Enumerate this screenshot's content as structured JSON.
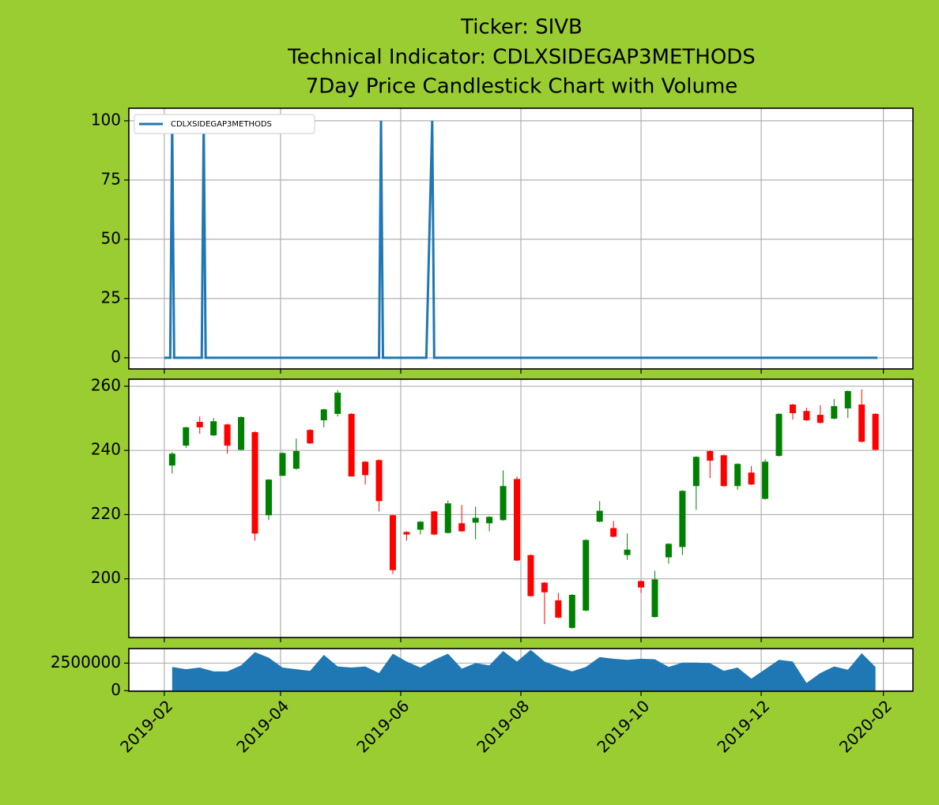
{
  "chart_data": [
    {
      "type": "line",
      "title": [
        "Ticker: SIVB",
        "Technical Indicator: CDLXSIDEGAP3METHODS",
        "7Day Price Candlestick Chart with Volume"
      ],
      "x": [
        "2019-02-01",
        "2019-02-04",
        "2019-02-05",
        "2019-02-06",
        "2019-02-20",
        "2019-02-21",
        "2019-02-22",
        "2019-05-21",
        "2019-05-22",
        "2019-05-23",
        "2019-06-14",
        "2019-06-17",
        "2019-06-18",
        "2020-01-29"
      ],
      "series": [
        {
          "name": "CDLXSIDEGAP3METHODS",
          "color": "#1f77b4",
          "values": [
            0,
            0,
            100,
            0,
            0,
            100,
            0,
            0,
            100,
            0,
            0,
            100,
            0,
            0
          ]
        }
      ],
      "ylim": [
        -4.7,
        105.3
      ],
      "yticks": [
        0,
        25,
        50,
        75,
        100
      ],
      "grid": true,
      "legend": "upper left"
    },
    {
      "type": "candlestick",
      "x": [
        "2019-02-05",
        "2019-02-12",
        "2019-02-19",
        "2019-02-26",
        "2019-03-05",
        "2019-03-12",
        "2019-03-19",
        "2019-03-26",
        "2019-04-02",
        "2019-04-09",
        "2019-04-16",
        "2019-04-23",
        "2019-04-30",
        "2019-05-07",
        "2019-05-14",
        "2019-05-21",
        "2019-05-28",
        "2019-06-04",
        "2019-06-11",
        "2019-06-18",
        "2019-06-25",
        "2019-07-02",
        "2019-07-09",
        "2019-07-16",
        "2019-07-23",
        "2019-07-30",
        "2019-08-06",
        "2019-08-13",
        "2019-08-20",
        "2019-08-27",
        "2019-09-03",
        "2019-09-10",
        "2019-09-17",
        "2019-09-24",
        "2019-10-01",
        "2019-10-08",
        "2019-10-15",
        "2019-10-22",
        "2019-10-29",
        "2019-11-05",
        "2019-11-12",
        "2019-11-19",
        "2019-11-26",
        "2019-12-03",
        "2019-12-10",
        "2019-12-17",
        "2019-12-24",
        "2019-12-31",
        "2020-01-07",
        "2020-01-14",
        "2020-01-21",
        "2020-01-28"
      ],
      "open": [
        235.3,
        241.5,
        248.9,
        244.7,
        248.1,
        240.2,
        245.7,
        219.8,
        232.1,
        234.3,
        246.4,
        249.4,
        251.4,
        251.4,
        236.5,
        237,
        219.8,
        214.6,
        215.3,
        221,
        214.3,
        217.3,
        217.5,
        217.3,
        218.3,
        231.1,
        207.4,
        198.8,
        193.3,
        184.7,
        190.1,
        217.8,
        215.8,
        207.4,
        199.3,
        188.1,
        206.7,
        209.9,
        228.9,
        239.8,
        238.5,
        228.9,
        233.1,
        224.9,
        238.3,
        254.3,
        252.3,
        251.1,
        249.9,
        253.1,
        254.3,
        251.4
      ],
      "high": [
        239.5,
        247.4,
        250.6,
        250.1,
        248.3,
        250.6,
        246,
        231.1,
        239.4,
        243.7,
        246.6,
        253,
        258.8,
        251.6,
        236.7,
        237.2,
        220,
        214.8,
        218,
        221.2,
        224.4,
        223,
        222.5,
        219.5,
        233.8,
        231.9,
        207.6,
        199,
        195.6,
        195.2,
        212.3,
        224.2,
        218,
        214.1,
        199.5,
        202.5,
        211.1,
        227.6,
        238.2,
        240,
        238.7,
        236,
        235.1,
        237.3,
        251.6,
        254.5,
        253.3,
        254.1,
        256,
        258.7,
        259,
        251.6
      ],
      "low": [
        232.8,
        240.8,
        245.2,
        244.5,
        239,
        240,
        211.9,
        218.3,
        232,
        234,
        242,
        247.2,
        250.6,
        231.9,
        229.4,
        221,
        201.5,
        211.9,
        213.8,
        213.6,
        214.1,
        214.6,
        212.3,
        214.8,
        218.1,
        205.5,
        194.4,
        185.9,
        187.7,
        184.5,
        189.9,
        217.6,
        212.9,
        205.9,
        195.6,
        187.9,
        204.7,
        207.4,
        221.5,
        231.4,
        228.7,
        227.7,
        229.2,
        224.7,
        238.1,
        249.6,
        249.2,
        248.4,
        249.7,
        250.1,
        242.5,
        240
      ],
      "close": [
        239,
        247.2,
        247.2,
        249.1,
        241.5,
        250.4,
        214.1,
        230.9,
        239.2,
        239.8,
        242.2,
        252.8,
        258,
        231.9,
        232.3,
        224.2,
        202.7,
        213.8,
        217.8,
        213.8,
        223.5,
        214.8,
        219,
        219.3,
        228.9,
        205.7,
        194.6,
        195.8,
        187.9,
        195,
        212.1,
        221.2,
        213.1,
        209.1,
        197.3,
        199.8,
        210.9,
        227.4,
        238,
        236.8,
        228.9,
        235.8,
        229.4,
        236.5,
        251.4,
        251.6,
        249.4,
        248.6,
        253.8,
        258.5,
        242.7,
        240.2
      ],
      "up_color": "green",
      "down_color": "red",
      "ylim": [
        181.7,
        262.2
      ],
      "yticks": [
        200,
        220,
        240,
        260
      ],
      "grid": true
    },
    {
      "type": "area",
      "x": [
        "2019-02-05",
        "2019-02-12",
        "2019-02-19",
        "2019-02-26",
        "2019-03-05",
        "2019-03-12",
        "2019-03-19",
        "2019-03-26",
        "2019-04-02",
        "2019-04-09",
        "2019-04-16",
        "2019-04-23",
        "2019-04-30",
        "2019-05-07",
        "2019-05-14",
        "2019-05-21",
        "2019-05-28",
        "2019-06-04",
        "2019-06-11",
        "2019-06-18",
        "2019-06-25",
        "2019-07-02",
        "2019-07-09",
        "2019-07-16",
        "2019-07-23",
        "2019-07-30",
        "2019-08-06",
        "2019-08-13",
        "2019-08-20",
        "2019-08-27",
        "2019-09-03",
        "2019-09-10",
        "2019-09-17",
        "2019-09-24",
        "2019-10-01",
        "2019-10-08",
        "2019-10-15",
        "2019-10-22",
        "2019-10-29",
        "2019-11-05",
        "2019-11-12",
        "2019-11-19",
        "2019-11-26",
        "2019-12-03",
        "2019-12-10",
        "2019-12-17",
        "2019-12-24",
        "2019-12-31",
        "2020-01-07",
        "2020-01-14",
        "2020-01-21",
        "2020-01-28"
      ],
      "values": [
        2150000,
        1950000,
        2100000,
        1750000,
        1750000,
        2300000,
        3500000,
        3000000,
        2100000,
        1950000,
        1800000,
        3250000,
        2200000,
        2100000,
        2200000,
        1600000,
        3350000,
        2650000,
        2100000,
        2800000,
        3350000,
        2000000,
        2500000,
        2300000,
        3600000,
        2650000,
        3700000,
        2650000,
        2150000,
        1750000,
        2150000,
        3050000,
        2900000,
        2800000,
        2900000,
        2850000,
        2150000,
        2550000,
        2550000,
        2500000,
        1800000,
        2100000,
        1100000,
        1950000,
        2800000,
        2650000,
        700000,
        1600000,
        2200000,
        1900000,
        3400000,
        2150000
      ],
      "color": "#1f77b4",
      "xlim": [
        "2019-01-14",
        "2020-02-16"
      ],
      "xticks": [
        {
          "value": "2019-02-01",
          "label": "2019-02"
        },
        {
          "value": "2019-04-01",
          "label": "2019-04"
        },
        {
          "value": "2019-06-01",
          "label": "2019-06"
        },
        {
          "value": "2019-08-01",
          "label": "2019-08"
        },
        {
          "value": "2019-10-01",
          "label": "2019-10"
        },
        {
          "value": "2019-12-01",
          "label": "2019-12"
        },
        {
          "value": "2020-02-01",
          "label": "2020-02"
        }
      ],
      "ylim": [
        -50000,
        3820000
      ],
      "yticks": [
        0,
        2500000
      ],
      "grid": true
    }
  ]
}
